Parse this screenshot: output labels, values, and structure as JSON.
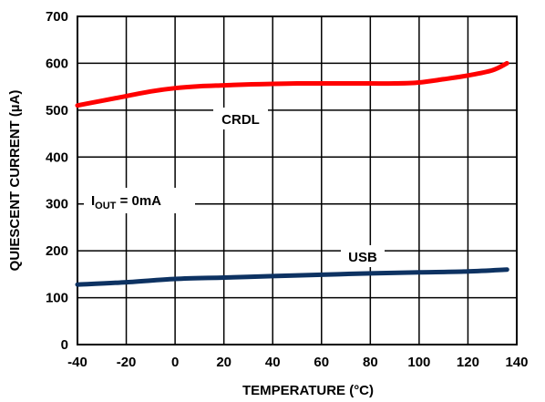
{
  "chart_data": {
    "type": "line",
    "xlabel": "TEMPERATURE (°C)",
    "ylabel": "QUIESCENT CURRENT (µA)",
    "xlim": [
      -40,
      140
    ],
    "ylim": [
      0,
      700
    ],
    "x_ticks": [
      -40,
      -20,
      0,
      20,
      40,
      60,
      80,
      100,
      120,
      140
    ],
    "y_ticks": [
      0,
      100,
      200,
      300,
      400,
      500,
      600,
      700
    ],
    "grid": true,
    "series": [
      {
        "name": "CRDL",
        "color": "#ff0000",
        "x": [
          -40,
          -30,
          -20,
          -10,
          0,
          10,
          20,
          30,
          40,
          50,
          60,
          70,
          80,
          90,
          100,
          110,
          120,
          130,
          136
        ],
        "y": [
          510,
          520,
          530,
          540,
          547,
          551,
          553,
          555,
          556,
          557,
          557,
          557,
          557,
          557,
          559,
          566,
          574,
          585,
          600
        ]
      },
      {
        "name": "USB",
        "color": "#0d3262",
        "x": [
          -40,
          -20,
          0,
          20,
          40,
          60,
          80,
          100,
          120,
          136
        ],
        "y": [
          128,
          133,
          140,
          143,
          146,
          149,
          152,
          154,
          156,
          160
        ]
      }
    ],
    "annotations": {
      "condition": {
        "main": "I",
        "sub": "OUT",
        "rest": " = 0mA"
      }
    }
  }
}
